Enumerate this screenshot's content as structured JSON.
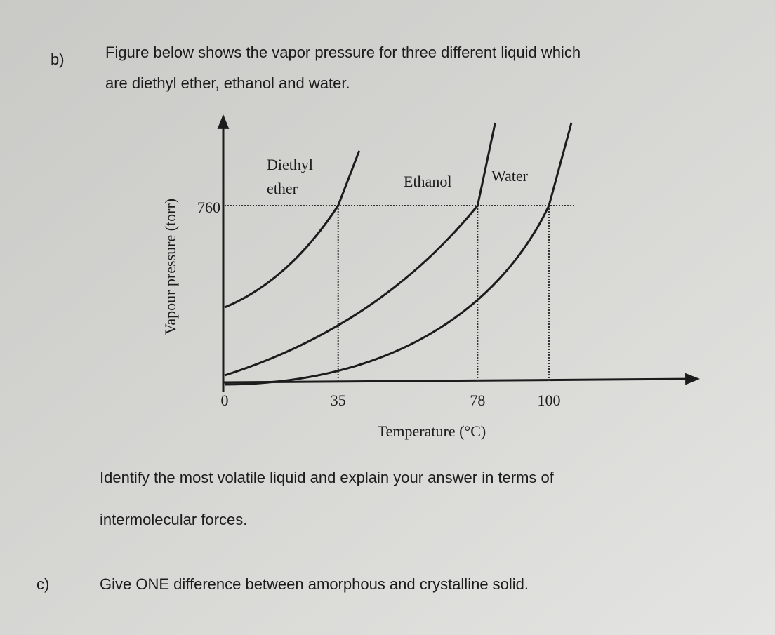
{
  "question_b": {
    "label": "b)",
    "lines": [
      "Figure below shows the vapor pressure for three different liquid which",
      "are diethyl ether, ethanol and water."
    ]
  },
  "figure": {
    "y_axis_label": "Vapour pressure (torr)",
    "x_axis_label": "Temperature (°C)",
    "yticks": [
      760
    ],
    "xticks": [
      0,
      35,
      78,
      100
    ],
    "curve_labels": {
      "diethyl_ether": [
        "Diethyl",
        "ether"
      ],
      "ethanol": "Ethanol",
      "water": "Water"
    }
  },
  "question_b_task": {
    "lines": [
      "Identify the most volatile liquid and explain your answer in terms of",
      "intermolecular forces."
    ]
  },
  "question_c": {
    "label": "c)",
    "text": "Give ONE difference between amorphous and crystalline solid."
  }
}
